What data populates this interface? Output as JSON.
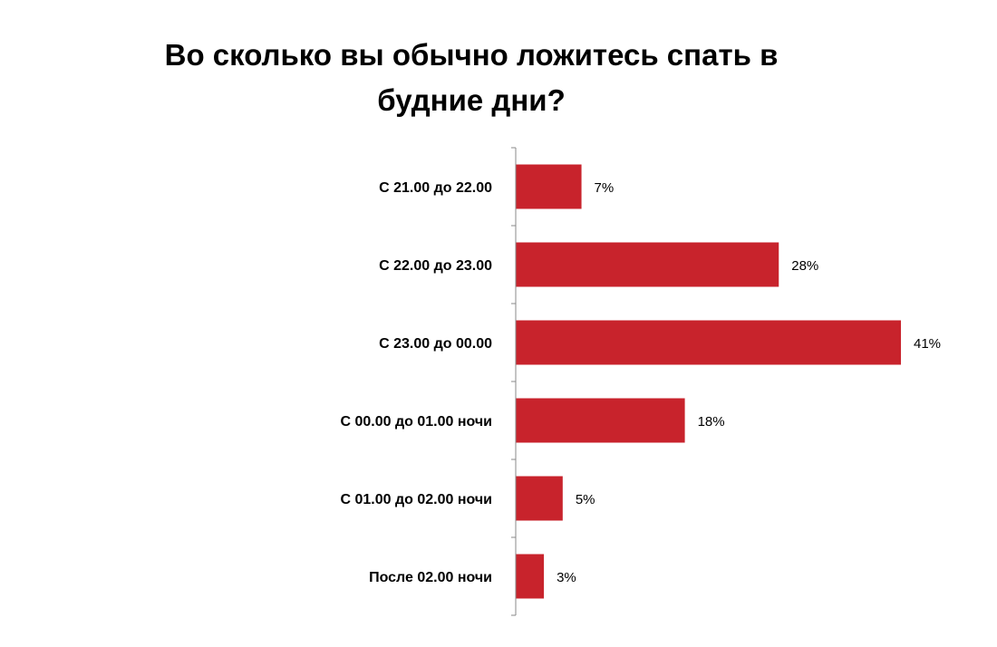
{
  "chart_data": {
    "type": "bar",
    "orientation": "horizontal",
    "title_lines": [
      "Во сколько вы обычно ложитесь спать в",
      "будние дни?"
    ],
    "categories": [
      "С 21.00 до 22.00",
      "С 22.00 до 23.00",
      "С 23.00 до 00.00",
      "С 00.00 до 01.00 ночи",
      "С 01.00 до 02.00 ночи",
      "После 02.00 ночи"
    ],
    "values": [
      7,
      28,
      41,
      18,
      5,
      3
    ],
    "data_labels": [
      "7%",
      "28%",
      "41%",
      "18%",
      "5%",
      "3%"
    ],
    "value_unit": "%",
    "bar_color": "#c8232c",
    "xlim": [
      0,
      41
    ],
    "grid": false,
    "legend": "none"
  }
}
